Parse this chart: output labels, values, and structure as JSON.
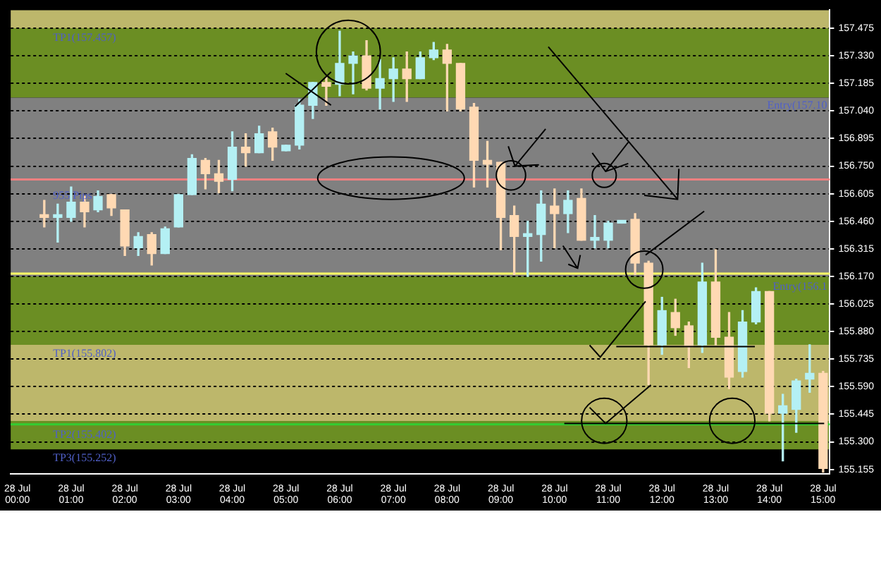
{
  "chart_data": {
    "type": "candlestick",
    "categories": [
      "28 Jul 00:00",
      null,
      null,
      null,
      "28 Jul 01:00",
      null,
      null,
      null,
      "28 Jul 02:00",
      null,
      null,
      null,
      "28 Jul 03:00",
      null,
      null,
      null,
      "28 Jul 04:00",
      null,
      null,
      null,
      "28 Jul 05:00",
      null,
      null,
      null,
      "28 Jul 06:00",
      null,
      null,
      null,
      "28 Jul 07:00",
      null,
      null,
      null,
      "28 Jul 08:00",
      null,
      null,
      null,
      "28 Jul 09:00",
      null,
      null,
      null,
      "28 Jul 10:00",
      null,
      null,
      null,
      "28 Jul 11:00",
      null,
      null,
      null,
      "28 Jul 12:00",
      null,
      null,
      null,
      "28 Jul 13:00",
      null,
      null,
      null,
      "28 Jul 14:00",
      null,
      null,
      null,
      "28 Jul 15:00"
    ],
    "ohlc": [
      null,
      null,
      [
        156.49,
        156.57,
        156.43,
        156.48
      ],
      [
        156.48,
        156.55,
        156.35,
        156.49
      ],
      [
        156.48,
        156.64,
        156.46,
        156.56
      ],
      [
        156.56,
        156.59,
        156.43,
        156.51
      ],
      [
        156.52,
        156.62,
        156.51,
        156.59
      ],
      [
        156.6,
        156.6,
        156.49,
        156.53
      ],
      [
        156.52,
        156.52,
        156.28,
        156.33
      ],
      [
        156.32,
        156.4,
        156.28,
        156.38
      ],
      [
        156.39,
        156.4,
        156.23,
        156.29
      ],
      [
        156.29,
        156.43,
        156.29,
        156.42
      ],
      [
        156.43,
        156.6,
        156.43,
        156.6
      ],
      [
        156.6,
        156.81,
        156.6,
        156.79
      ],
      [
        156.78,
        156.79,
        156.63,
        156.71
      ],
      [
        156.71,
        156.78,
        156.61,
        156.67
      ],
      [
        156.68,
        156.93,
        156.62,
        156.85
      ],
      [
        156.85,
        156.92,
        156.75,
        156.82
      ],
      [
        156.82,
        156.96,
        156.82,
        156.92
      ],
      [
        156.93,
        156.95,
        156.78,
        156.85
      ],
      [
        156.83,
        156.86,
        156.83,
        156.86
      ],
      [
        156.86,
        157.1,
        156.84,
        157.07
      ],
      [
        157.07,
        157.19,
        157.0,
        157.19
      ],
      [
        157.19,
        157.22,
        157.07,
        157.17
      ],
      [
        157.18,
        157.46,
        157.12,
        157.29
      ],
      [
        157.29,
        157.35,
        157.13,
        157.33
      ],
      [
        157.33,
        157.41,
        157.15,
        157.16
      ],
      [
        157.16,
        157.31,
        157.05,
        157.21
      ],
      [
        157.21,
        157.32,
        157.09,
        157.26
      ],
      [
        157.26,
        157.35,
        157.09,
        157.21
      ],
      [
        157.21,
        157.35,
        157.21,
        157.32
      ],
      [
        157.32,
        157.4,
        157.31,
        157.36
      ],
      [
        157.36,
        157.39,
        157.04,
        157.29
      ],
      [
        157.29,
        157.29,
        157.04,
        157.05
      ],
      [
        157.06,
        157.08,
        156.64,
        156.78
      ],
      [
        156.78,
        156.88,
        156.64,
        156.76
      ],
      [
        156.77,
        156.77,
        156.31,
        156.48
      ],
      [
        156.49,
        156.54,
        156.18,
        156.38
      ],
      [
        156.38,
        156.46,
        156.17,
        156.39
      ],
      [
        156.39,
        156.62,
        156.25,
        156.55
      ],
      [
        156.54,
        156.63,
        156.32,
        156.5
      ],
      [
        156.5,
        156.62,
        156.4,
        156.57
      ],
      [
        156.58,
        156.63,
        156.36,
        156.36
      ],
      [
        156.36,
        156.49,
        156.32,
        156.37
      ],
      [
        156.36,
        156.46,
        156.32,
        156.45
      ],
      [
        156.45,
        156.46,
        156.45,
        156.46
      ],
      [
        156.47,
        156.5,
        156.18,
        156.24
      ],
      [
        156.24,
        156.25,
        155.6,
        155.81
      ],
      [
        155.81,
        156.06,
        155.76,
        155.99
      ],
      [
        155.98,
        156.05,
        155.86,
        155.9
      ],
      [
        155.91,
        155.93,
        155.69,
        155.8
      ],
      [
        155.81,
        156.24,
        155.77,
        156.14
      ],
      [
        156.14,
        156.31,
        155.81,
        155.85
      ],
      [
        155.85,
        155.98,
        155.58,
        155.64
      ],
      [
        155.67,
        155.99,
        155.64,
        155.93
      ],
      [
        155.93,
        156.11,
        155.92,
        156.09
      ],
      [
        156.09,
        156.09,
        155.41,
        155.45
      ],
      [
        155.45,
        155.55,
        155.2,
        155.49
      ],
      [
        155.47,
        155.63,
        155.35,
        155.62
      ],
      [
        155.63,
        155.81,
        155.56,
        155.66
      ],
      [
        155.66,
        155.67,
        155.14,
        155.16
      ]
    ],
    "colors": [
      null,
      null,
      "#ffd9b3",
      "#b4f0f4",
      "#b4f0f4",
      "#ffd9b3",
      "#b4f0f4",
      "#ffd9b3",
      "#ffd9b3",
      "#b4f0f4",
      "#ffd9b3",
      "#b4f0f4",
      "#b4f0f4",
      "#b4f0f4",
      "#ffd9b3",
      "#ffd9b3",
      "#b4f0f4",
      "#ffd9b3",
      "#b4f0f4",
      "#ffd9b3",
      "#b4f0f4",
      "#b4f0f4",
      "#b4f0f4",
      "#ffd9b3",
      "#b4f0f4",
      "#b4f0f4",
      "#ffd9b3",
      "#b4f0f4",
      "#b4f0f4",
      "#ffd9b3",
      "#b4f0f4",
      "#b4f0f4",
      "#ffd9b3",
      "#ffd9b3",
      "#ffd9b3",
      "#ffd9b3",
      "#ffd9b3",
      "#ffd9b3",
      "#b4f0f4",
      "#b4f0f4",
      "#ffd9b3",
      "#b4f0f4",
      "#ffd9b3",
      "#b4f0f4",
      "#b4f0f4",
      "#b4f0f4",
      "#ffd9b3",
      "#ffd9b3",
      "#b4f0f4",
      "#ffd9b3",
      "#ffd9b3",
      "#b4f0f4",
      "#ffd9b3",
      "#ffd9b3",
      "#b4f0f4",
      "#b4f0f4",
      "#ffd9b3",
      "#b4f0f4",
      "#b4f0f4",
      "#b4f0f4",
      "#ffd9b3"
    ],
    "ylim": [
      155.13,
      157.57
    ],
    "yticks": [
      {
        "value": 155.155,
        "label": "155.155"
      },
      {
        "value": 155.3,
        "label": "155.300"
      },
      {
        "value": 155.445,
        "label": "155.445"
      },
      {
        "value": 155.59,
        "label": "155.590"
      },
      {
        "value": 155.735,
        "label": "155.735"
      },
      {
        "value": 155.88,
        "label": "155.880"
      },
      {
        "value": 156.025,
        "label": "156.025"
      },
      {
        "value": 156.17,
        "label": "156.170"
      },
      {
        "value": 156.315,
        "label": "156.315"
      },
      {
        "value": 156.46,
        "label": "156.460"
      },
      {
        "value": 156.605,
        "label": "156.605"
      },
      {
        "value": 156.75,
        "label": "156.750"
      },
      {
        "value": 156.895,
        "label": "156.895"
      },
      {
        "value": 157.04,
        "label": "157.040"
      },
      {
        "value": 157.185,
        "label": "157.185"
      },
      {
        "value": 157.33,
        "label": "157.330"
      },
      {
        "value": 157.475,
        "label": "157.475"
      }
    ],
    "grid": "y",
    "legend": false,
    "bands": [
      {
        "axis": "y",
        "from": 157.475,
        "to": 157.57,
        "color": "#bdb76b"
      },
      {
        "axis": "y",
        "from": 157.11,
        "to": 157.475,
        "color": "#6b8e23"
      },
      {
        "axis": "y",
        "from": 156.17,
        "to": 157.11,
        "color": "#808080"
      },
      {
        "axis": "y",
        "from": 155.81,
        "to": 156.17,
        "color": "#6b8e23"
      },
      {
        "axis": "y",
        "from": 155.41,
        "to": 155.81,
        "color": "#bdb76b"
      },
      {
        "axis": "y",
        "from": 155.26,
        "to": 155.41,
        "color": "#6b8e23"
      }
    ],
    "ref_lines": [
      {
        "axis": "y",
        "value": 156.68,
        "color": "#f08080"
      },
      {
        "axis": "y",
        "value": 156.185,
        "color": "#ffff66"
      },
      {
        "axis": "y",
        "value": 155.392,
        "color": "#32cd32"
      }
    ],
    "annotations": [
      "TP1(157.457)",
      "Entry(157.10",
      "955 Pips",
      "TP1(155.802)",
      {
        "text": "TP2(155.402)",
        "y": 155.36
      },
      "TP3(155.252)",
      "Entry(156.1"
    ]
  }
}
